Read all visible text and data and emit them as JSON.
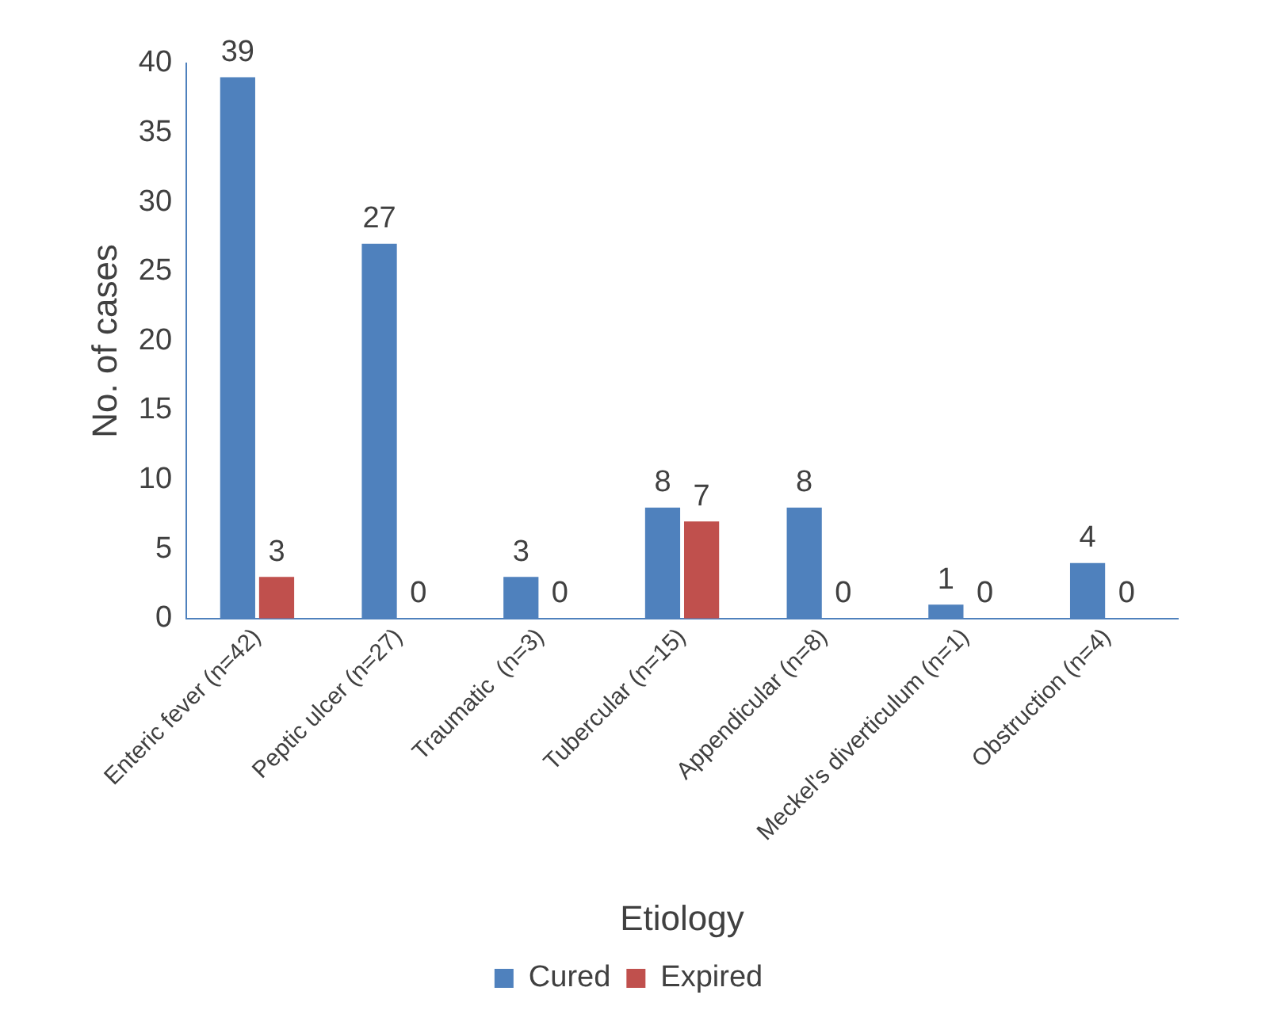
{
  "chart_data": {
    "type": "bar",
    "xlabel": "Etiology",
    "ylabel": "No. of cases",
    "categories": [
      "Enteric fever (n=42)",
      "Peptic ulcer (n=27)",
      "Traumatic  (n=3)",
      "Tubercular (n=15)",
      "Appendicular (n=8)",
      "Meckel's diverticulum (n=1)",
      "Obstruction (n=4)"
    ],
    "series": [
      {
        "name": "Cured",
        "color": "#4f81bd",
        "values": [
          39,
          27,
          3,
          8,
          8,
          1,
          4
        ]
      },
      {
        "name": "Expired",
        "color": "#c0504d",
        "values": [
          3,
          0,
          0,
          7,
          0,
          0,
          0
        ]
      }
    ],
    "ylim": [
      0,
      40
    ],
    "yticks": [
      0,
      5,
      10,
      15,
      20,
      25,
      30,
      35,
      40
    ],
    "grid": false,
    "legend": "bottom",
    "data_labels": true
  }
}
